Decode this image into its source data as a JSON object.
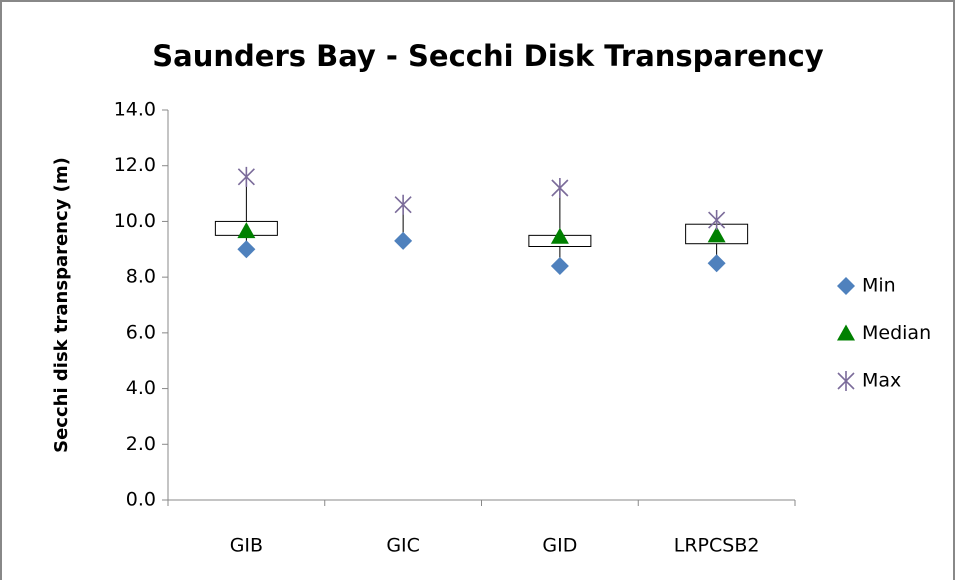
{
  "chart_data": {
    "type": "box",
    "title": "Saunders Bay - Secchi Disk Transparency",
    "y_label": "Secchi disk transparency (m)",
    "categories": [
      "GIB",
      "GIC",
      "GID",
      "LRPCSB2"
    ],
    "box_low": [
      9.5,
      null,
      9.1,
      9.2
    ],
    "box_high": [
      10.0,
      null,
      9.5,
      9.9
    ],
    "series": [
      {
        "name": "Min",
        "color": "#4f81bd",
        "marker": "diamond",
        "values": [
          9.0,
          9.3,
          8.4,
          8.5
        ]
      },
      {
        "name": "Median",
        "color": "#008000",
        "marker": "triangle",
        "values": [
          9.65,
          null,
          9.45,
          9.5
        ]
      },
      {
        "name": "Max",
        "color": "#7b6b9a",
        "marker": "star",
        "values": [
          11.6,
          10.6,
          11.2,
          10.05
        ]
      }
    ],
    "ylim": [
      0,
      14
    ],
    "yticks": [
      {
        "value": 0,
        "label": "0.0"
      },
      {
        "value": 2,
        "label": "2.0"
      },
      {
        "value": 4,
        "label": "4.0"
      },
      {
        "value": 6,
        "label": "6.0"
      },
      {
        "value": 8,
        "label": "8.0"
      },
      {
        "value": 10,
        "label": "10.0"
      },
      {
        "value": 12,
        "label": "12.0"
      },
      {
        "value": 14,
        "label": "14.0"
      }
    ],
    "legend": "right"
  }
}
